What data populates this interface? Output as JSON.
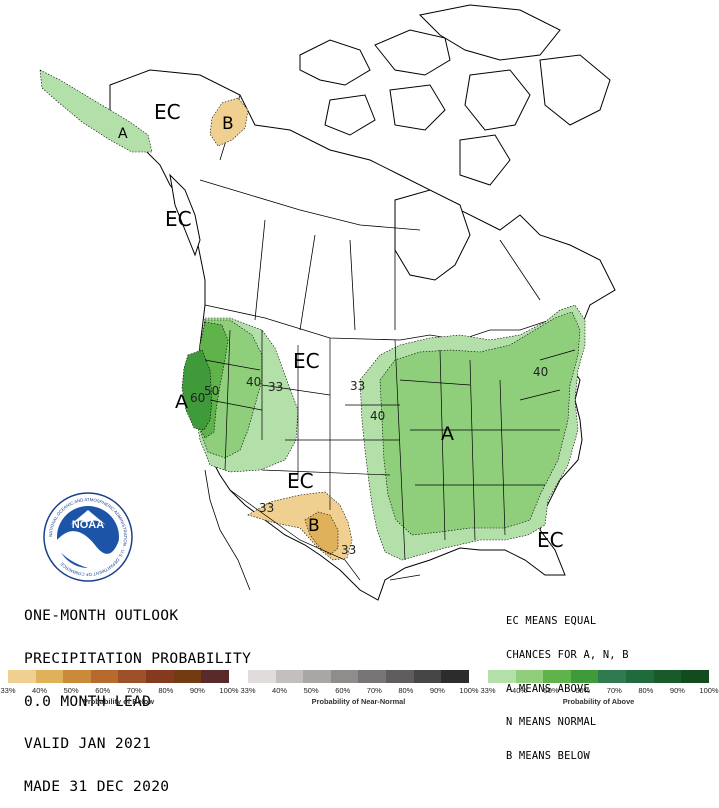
{
  "title_lines": [
    "ONE-MONTH OUTLOOK",
    "PRECIPITATION PROBABILITY",
    "0.0 MONTH LEAD",
    "VALID JAN 2021",
    "MADE 31 DEC 2020"
  ],
  "ec_note_lines": [
    "EC MEANS EQUAL",
    "CHANCES FOR A, N, B",
    "A MEANS ABOVE",
    "N MEANS NORMAL",
    "B MEANS BELOW"
  ],
  "logo": {
    "text": "NOAA",
    "ring_text": "NATIONAL OCEANIC AND ATMOSPHERIC ADMINISTRATION · U.S. DEPARTMENT OF COMMERCE"
  },
  "map_labels": {
    "ec_alaska_north": "EC",
    "b_alaska": "B",
    "a_alaska": "A",
    "ec_alaska_south": "EC",
    "ec_central": "EC",
    "a_west": "A",
    "ec_southwest": "EC",
    "b_southwest": "B",
    "a_east": "A",
    "ec_gulf": "EC"
  },
  "contour_labels": {
    "c60": "60",
    "c50": "50",
    "c40_west": "40",
    "c33_west": "33",
    "c33_central": "33",
    "c40_central": "40",
    "c40_northeast": "40",
    "c33_southwest": "33",
    "c33_texas": "33"
  },
  "legend": {
    "below": {
      "caption": "Probability of Below",
      "colors": [
        "#f0d090",
        "#dfb15a",
        "#c98b3a",
        "#b66a2e",
        "#9c5128",
        "#853a20",
        "#743b12",
        "#5a2a2a"
      ],
      "ticks": [
        "33%",
        "40%",
        "50%",
        "60%",
        "70%",
        "80%",
        "90%",
        "100%"
      ]
    },
    "near_normal": {
      "caption": "Probability of Near-Normal",
      "colors": [
        "#e0dcdc",
        "#c4bfbf",
        "#a9a6a6",
        "#8f8c8c",
        "#777575",
        "#5f5d5d",
        "#474646",
        "#2c2c2c"
      ],
      "ticks": [
        "33%",
        "40%",
        "50%",
        "60%",
        "70%",
        "80%",
        "90%",
        "100%"
      ]
    },
    "above": {
      "caption": "Probability of Above",
      "colors": [
        "#b3dfa9",
        "#8fcf7c",
        "#5fb34a",
        "#3f9a3a",
        "#2f7a4f",
        "#1f6b3c",
        "#185a2a",
        "#124c1e"
      ],
      "ticks": [
        "33%",
        "40%",
        "50%",
        "60%",
        "70%",
        "80%",
        "90%",
        "100%"
      ]
    }
  }
}
